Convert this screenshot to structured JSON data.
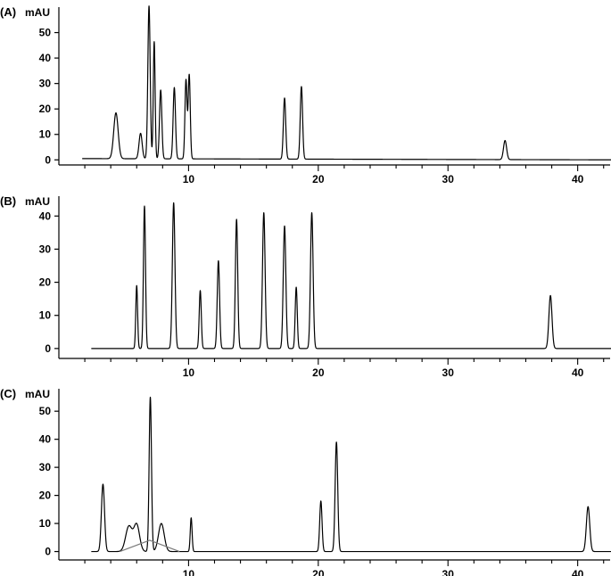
{
  "chart_data": [
    {
      "type": "line",
      "panel_label": "(A)",
      "ylabel": "mAU",
      "xlim": [
        0,
        42.5
      ],
      "ylim": [
        -2,
        60
      ],
      "xticks": [
        10,
        20,
        30,
        40
      ],
      "yticks": [
        0,
        10,
        20,
        30,
        40,
        50
      ],
      "grid": false,
      "series": [
        {
          "baseline": [
            [
              1.8,
              0.5
            ],
            [
              43,
              0
            ]
          ],
          "peaks": [
            {
              "rt": 4.4,
              "height": 18,
              "width": 0.17
            },
            {
              "rt": 6.3,
              "height": 10,
              "width": 0.12
            },
            {
              "rt": 6.95,
              "height": 60,
              "width": 0.09
            },
            {
              "rt": 7.35,
              "height": 46,
              "width": 0.07
            },
            {
              "rt": 7.85,
              "height": 27,
              "width": 0.09
            },
            {
              "rt": 8.9,
              "height": 28,
              "width": 0.09
            },
            {
              "rt": 9.8,
              "height": 31,
              "width": 0.08
            },
            {
              "rt": 10.05,
              "height": 33,
              "width": 0.08
            },
            {
              "rt": 17.4,
              "height": 24,
              "width": 0.09
            },
            {
              "rt": 18.7,
              "height": 28.5,
              "width": 0.09
            },
            {
              "rt": 34.4,
              "height": 7.5,
              "width": 0.12
            }
          ]
        }
      ]
    },
    {
      "type": "line",
      "panel_label": "(B)",
      "ylabel": "mAU",
      "xlim": [
        0,
        42.5
      ],
      "ylim": [
        -3,
        46
      ],
      "xticks": [
        10,
        20,
        30,
        40
      ],
      "yticks": [
        0,
        10,
        20,
        30,
        40
      ],
      "grid": false,
      "series": [
        {
          "baseline": [
            [
              2.5,
              0
            ],
            [
              43,
              0
            ]
          ],
          "peaks": [
            {
              "rt": 6.0,
              "height": 19,
              "width": 0.07
            },
            {
              "rt": 6.6,
              "height": 43,
              "width": 0.08
            },
            {
              "rt": 8.85,
              "height": 44,
              "width": 0.1
            },
            {
              "rt": 10.9,
              "height": 17.5,
              "width": 0.08
            },
            {
              "rt": 12.3,
              "height": 26.5,
              "width": 0.09
            },
            {
              "rt": 13.7,
              "height": 39,
              "width": 0.09
            },
            {
              "rt": 15.8,
              "height": 41,
              "width": 0.1
            },
            {
              "rt": 17.4,
              "height": 37,
              "width": 0.1
            },
            {
              "rt": 18.3,
              "height": 18.5,
              "width": 0.08
            },
            {
              "rt": 19.5,
              "height": 41,
              "width": 0.1
            },
            {
              "rt": 37.9,
              "height": 16,
              "width": 0.12
            }
          ]
        }
      ]
    },
    {
      "type": "line",
      "panel_label": "(C)",
      "ylabel": "mAU",
      "xlim": [
        0,
        42.5
      ],
      "ylim": [
        -3,
        58
      ],
      "xticks": [
        10,
        20,
        30,
        40
      ],
      "yticks": [
        0,
        10,
        20,
        30,
        40,
        50
      ],
      "grid": false,
      "series": [
        {
          "baseline": [
            [
              2.5,
              0
            ],
            [
              43,
              0
            ]
          ],
          "peaks": [
            {
              "rt": 3.4,
              "height": 24,
              "width": 0.12
            },
            {
              "rt": 5.4,
              "height": 9,
              "width": 0.25
            },
            {
              "rt": 6.0,
              "height": 9.5,
              "width": 0.22
            },
            {
              "rt": 7.05,
              "height": 55,
              "width": 0.09
            },
            {
              "rt": 7.9,
              "height": 10,
              "width": 0.22
            },
            {
              "rt": 10.2,
              "height": 12,
              "width": 0.07
            },
            {
              "rt": 20.2,
              "height": 18,
              "width": 0.09
            },
            {
              "rt": 21.4,
              "height": 39,
              "width": 0.1
            },
            {
              "rt": 40.8,
              "height": 16,
              "width": 0.13
            }
          ]
        },
        {
          "color": "#7a7a7a",
          "points": [
            [
              4.7,
              0
            ],
            [
              7.0,
              4
            ],
            [
              9.3,
              0
            ]
          ]
        }
      ]
    }
  ]
}
